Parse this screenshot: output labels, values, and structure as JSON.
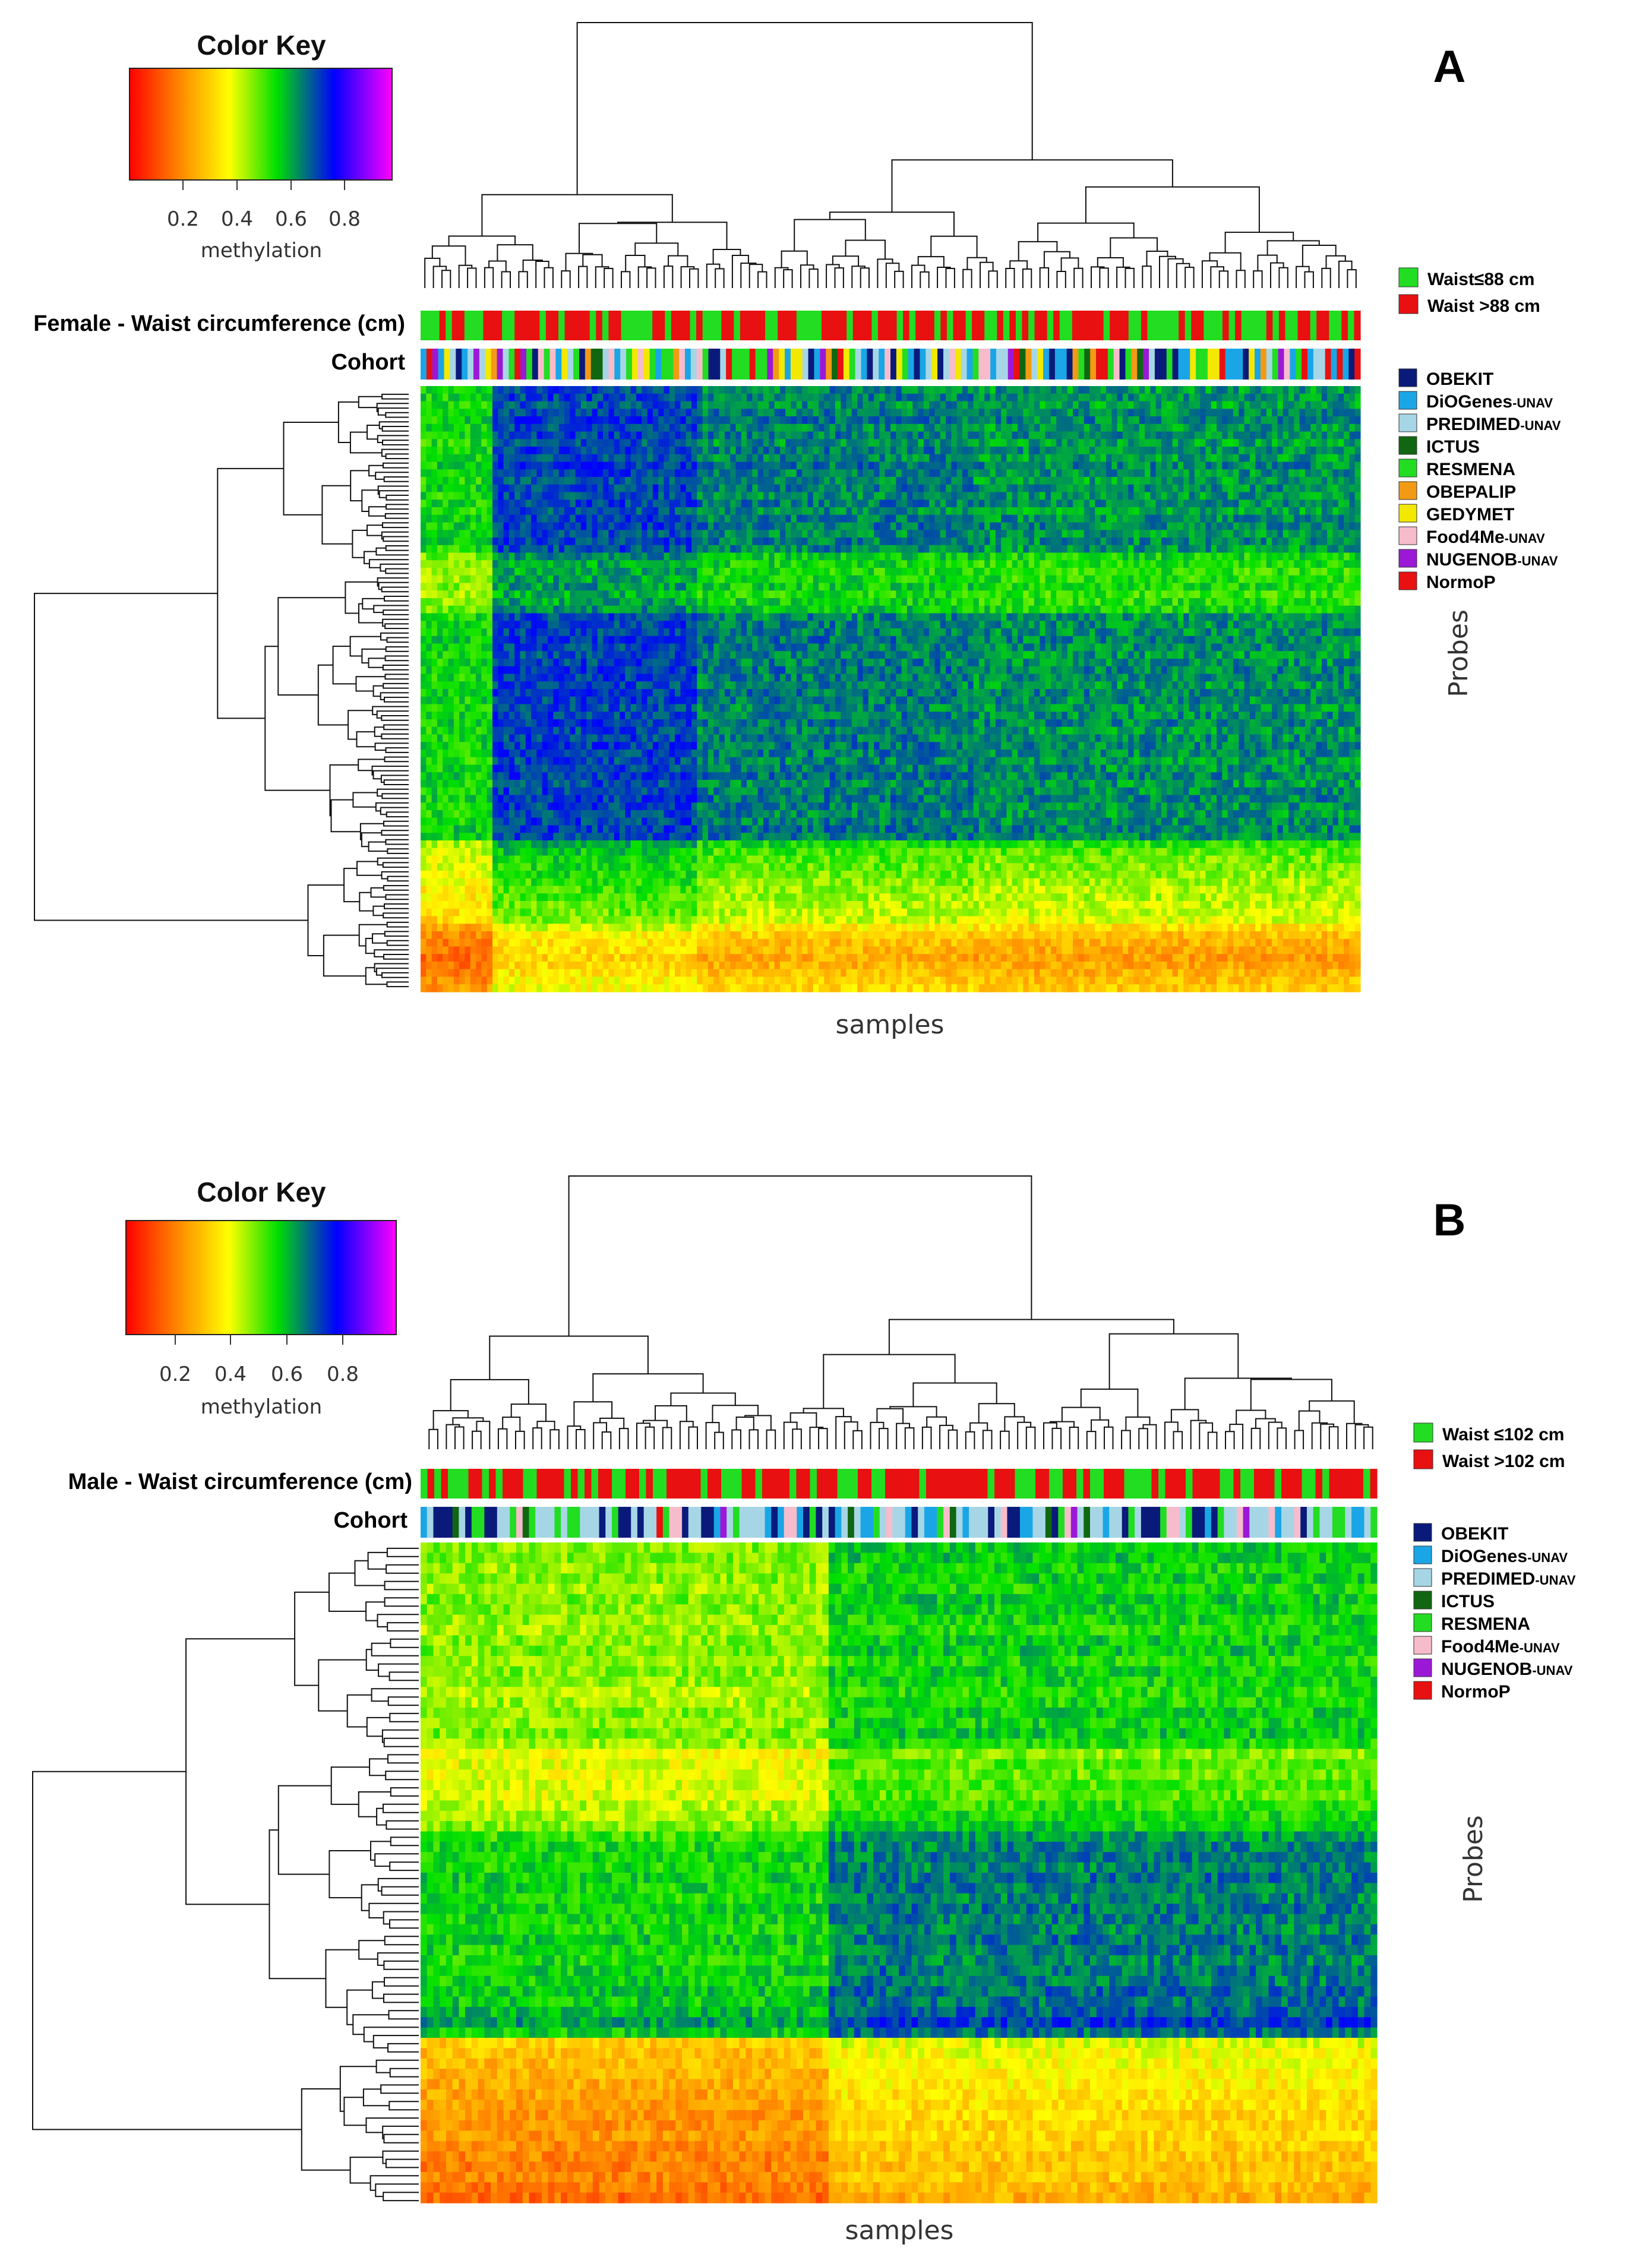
{
  "chart_data": [
    {
      "type": "heatmap",
      "panel": "A",
      "title": "Color Key",
      "color_key": {
        "colors": [
          "#ff0000",
          "#ff8000",
          "#ffff00",
          "#00e000",
          "#0000ff",
          "#ff00ff"
        ],
        "ticks": [
          "0.2",
          "0.4",
          "0.6",
          "0.8"
        ],
        "range": [
          0,
          1
        ],
        "label": "methylation"
      },
      "xlabel": "samples",
      "ylabel": "Probes",
      "row1_label": "Female - Waist circumference (cm)",
      "row2_label": "Cohort",
      "waist_legend": [
        {
          "label": "Waist≤88 cm",
          "color": "#22dd22"
        },
        {
          "label": "Waist >88 cm",
          "color": "#e81010"
        }
      ],
      "cohort_legend": [
        {
          "name": "OBEKIT",
          "suffix": "",
          "color": "#0a1a7a"
        },
        {
          "name": "DiOGenes",
          "suffix": "-UNAV",
          "color": "#1aa6e6"
        },
        {
          "name": "PREDIMED",
          "suffix": "-UNAV",
          "color": "#a6d6e6"
        },
        {
          "name": "ICTUS",
          "suffix": "",
          "color": "#116611"
        },
        {
          "name": "RESMENA",
          "suffix": "",
          "color": "#22dd22"
        },
        {
          "name": "OBEPALIP",
          "suffix": "",
          "color": "#f29a14"
        },
        {
          "name": "GEDYMET",
          "suffix": "",
          "color": "#f2e800"
        },
        {
          "name": "Food4Me",
          "suffix": "-UNAV",
          "color": "#f7bccb"
        },
        {
          "name": "NUGENOB",
          "suffix": "-UNAV",
          "color": "#9b19d6"
        },
        {
          "name": "NormoP",
          "suffix": "",
          "color": "#e81010"
        }
      ],
      "n_samples": 170,
      "n_probe_bands": 80,
      "probe_band_means": [
        0.65,
        0.66,
        0.64,
        0.66,
        0.67,
        0.65,
        0.66,
        0.64,
        0.66,
        0.65,
        0.67,
        0.66,
        0.64,
        0.66,
        0.65,
        0.66,
        0.64,
        0.66,
        0.67,
        0.65,
        0.66,
        0.65,
        0.58,
        0.56,
        0.55,
        0.56,
        0.57,
        0.55,
        0.56,
        0.58,
        0.65,
        0.66,
        0.66,
        0.67,
        0.66,
        0.65,
        0.66,
        0.67,
        0.66,
        0.65,
        0.67,
        0.66,
        0.65,
        0.66,
        0.67,
        0.65,
        0.66,
        0.67,
        0.66,
        0.65,
        0.66,
        0.67,
        0.65,
        0.66,
        0.67,
        0.66,
        0.65,
        0.66,
        0.67,
        0.66,
        0.55,
        0.52,
        0.5,
        0.49,
        0.48,
        0.47,
        0.46,
        0.45,
        0.44,
        0.43,
        0.42,
        0.35,
        0.3,
        0.28,
        0.27,
        0.25,
        0.26,
        0.28,
        0.3,
        0.32
      ],
      "sample_block_shift": [
        {
          "from": 0,
          "to": 13,
          "shift": -0.1
        },
        {
          "from": 13,
          "to": 50,
          "shift": 0.06
        },
        {
          "from": 50,
          "to": 100,
          "shift": 0.0
        },
        {
          "from": 100,
          "to": 170,
          "shift": -0.02
        }
      ]
    },
    {
      "type": "heatmap",
      "panel": "B",
      "title": "Color Key",
      "color_key": {
        "colors": [
          "#ff0000",
          "#ff8000",
          "#ffff00",
          "#00e000",
          "#0000ff",
          "#ff00ff"
        ],
        "ticks": [
          "0.2",
          "0.4",
          "0.6",
          "0.8"
        ],
        "range": [
          0,
          1
        ],
        "label": "methylation"
      },
      "xlabel": "samples",
      "ylabel": "Probes",
      "row1_label": "Male - Waist circumference (cm)",
      "row2_label": "Cohort",
      "waist_legend": [
        {
          "label": "Waist ≤102 cm",
          "color": "#22dd22"
        },
        {
          "label": "Waist >102 cm",
          "color": "#e81010"
        }
      ],
      "cohort_legend": [
        {
          "name": "OBEKIT",
          "suffix": "",
          "color": "#0a1a7a"
        },
        {
          "name": "DiOGenes",
          "suffix": "-UNAV",
          "color": "#1aa6e6"
        },
        {
          "name": "PREDIMED",
          "suffix": "-UNAV",
          "color": "#a6d6e6"
        },
        {
          "name": "ICTUS",
          "suffix": "",
          "color": "#116611"
        },
        {
          "name": "RESMENA",
          "suffix": "",
          "color": "#22dd22"
        },
        {
          "name": "Food4Me",
          "suffix": "-UNAV",
          "color": "#f7bccb"
        },
        {
          "name": "NUGENOB",
          "suffix": "-UNAV",
          "color": "#9b19d6"
        },
        {
          "name": "NormoP",
          "suffix": "",
          "color": "#e81010"
        }
      ],
      "n_samples": 150,
      "n_probe_bands": 64,
      "probe_band_means": [
        0.52,
        0.53,
        0.51,
        0.52,
        0.5,
        0.53,
        0.52,
        0.51,
        0.5,
        0.52,
        0.53,
        0.5,
        0.52,
        0.51,
        0.49,
        0.5,
        0.52,
        0.51,
        0.53,
        0.5,
        0.42,
        0.45,
        0.44,
        0.46,
        0.45,
        0.48,
        0.5,
        0.52,
        0.58,
        0.6,
        0.61,
        0.6,
        0.62,
        0.61,
        0.6,
        0.62,
        0.61,
        0.6,
        0.62,
        0.61,
        0.6,
        0.62,
        0.61,
        0.63,
        0.62,
        0.64,
        0.68,
        0.62,
        0.35,
        0.33,
        0.32,
        0.31,
        0.3,
        0.29,
        0.28,
        0.27,
        0.26,
        0.27,
        0.25,
        0.24,
        0.23,
        0.24,
        0.22,
        0.2
      ],
      "sample_block_shift": [
        {
          "from": 0,
          "to": 64,
          "shift": -0.05
        },
        {
          "from": 64,
          "to": 150,
          "shift": 0.05
        }
      ]
    }
  ]
}
